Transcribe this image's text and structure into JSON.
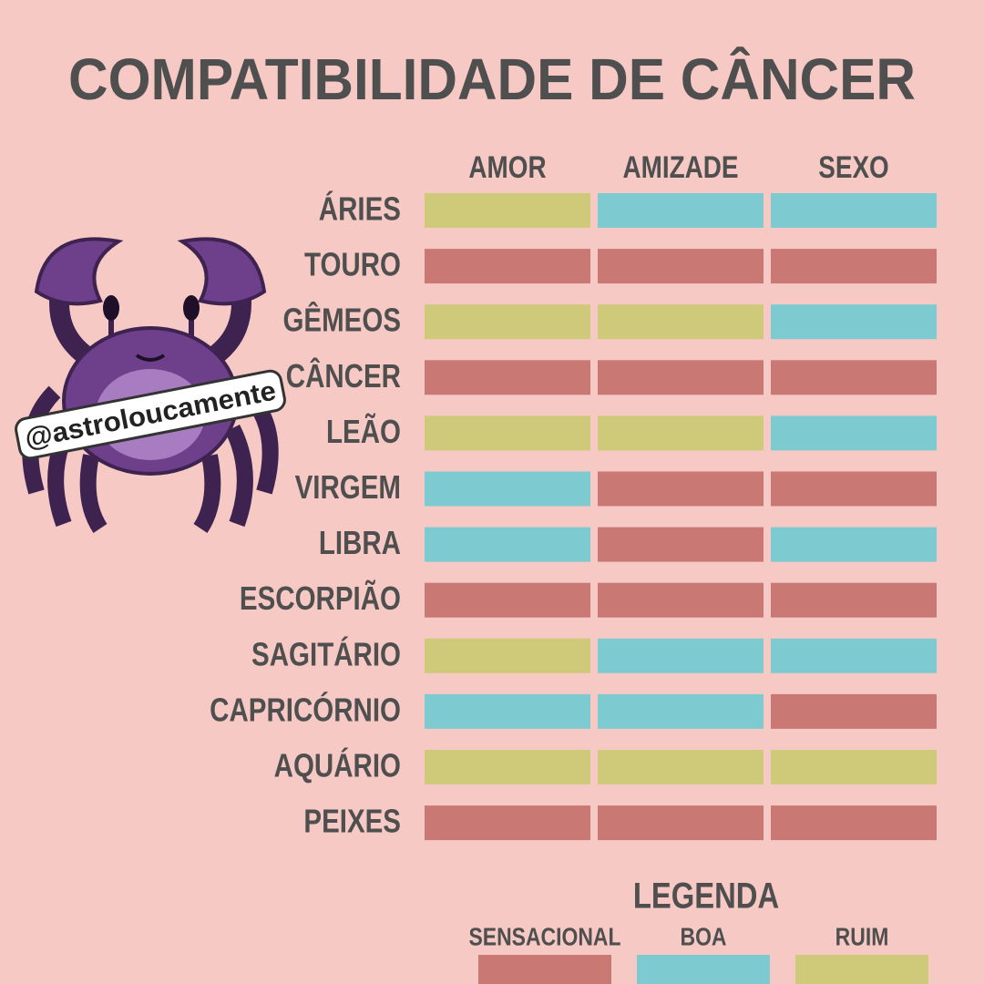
{
  "title": "COMPATIBILIDADE DE CÂNCER",
  "watermark": "@astroloucamente",
  "columns": [
    "AMOR",
    "AMIZADE",
    "SEXO"
  ],
  "rows": [
    {
      "label": "ÁRIES",
      "ratings": [
        2,
        1,
        1
      ]
    },
    {
      "label": "TOURO",
      "ratings": [
        0,
        0,
        0
      ]
    },
    {
      "label": "GÊMEOS",
      "ratings": [
        2,
        2,
        1
      ]
    },
    {
      "label": "CÂNCER",
      "ratings": [
        0,
        0,
        0
      ]
    },
    {
      "label": "LEÃO",
      "ratings": [
        2,
        2,
        1
      ]
    },
    {
      "label": "VIRGEM",
      "ratings": [
        1,
        0,
        0
      ]
    },
    {
      "label": "LIBRA",
      "ratings": [
        1,
        0,
        1
      ]
    },
    {
      "label": "ESCORPIÃO",
      "ratings": [
        0,
        0,
        0
      ]
    },
    {
      "label": "SAGITÁRIO",
      "ratings": [
        2,
        1,
        1
      ]
    },
    {
      "label": "CAPRICÓRNIO",
      "ratings": [
        1,
        1,
        0
      ]
    },
    {
      "label": "AQUÁRIO",
      "ratings": [
        2,
        2,
        2
      ]
    },
    {
      "label": "PEIXES",
      "ratings": [
        0,
        0,
        0
      ]
    }
  ],
  "legend": {
    "title": "LEGENDA",
    "items": [
      {
        "label": "SENSACIONAL",
        "color": "#c97873"
      },
      {
        "label": "BOA",
        "color": "#7dcbd0"
      },
      {
        "label": "RUIM",
        "color": "#cfca7a"
      }
    ]
  }
}
